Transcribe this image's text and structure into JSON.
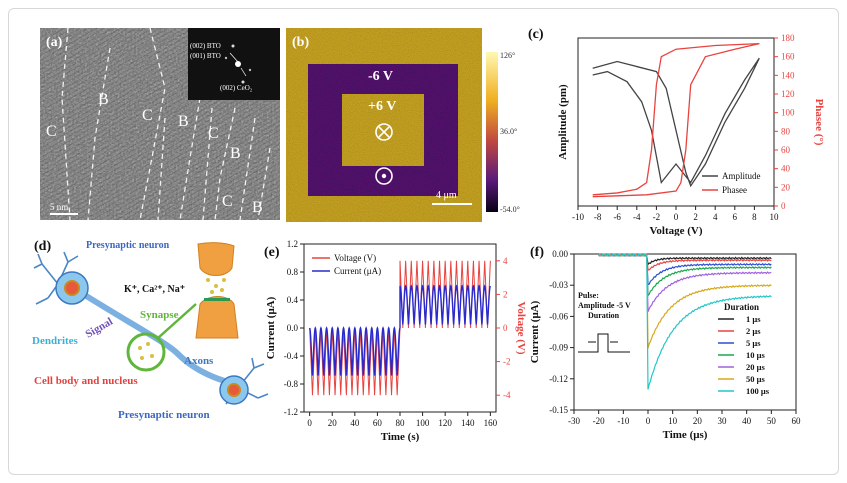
{
  "panels": {
    "a": {
      "label": "(a)",
      "fft_labels": [
        "(002) BTO",
        "(001) BTO",
        "(002) CeO₂"
      ],
      "region_labels": [
        "C",
        "B",
        "C",
        "B",
        "C",
        "B",
        "C",
        "B"
      ],
      "scale_bar": "5 nm"
    },
    "b": {
      "label": "(b)",
      "text_outer": "-6 V",
      "text_inner": "+6 V",
      "colorbar_ticks": [
        "126°",
        "36.0°",
        "-54.0°"
      ],
      "scale_bar": "4 μm"
    },
    "c": {
      "label": "(c)",
      "xlabel": "Voltage (V)",
      "ylabel_left": "Amplitude (pm)",
      "ylabel_right": "Phasee (°)",
      "legend": [
        "Amplitude",
        "Phasee"
      ],
      "colors": {
        "amplitude": "#444444",
        "phase": "#e8433f"
      }
    },
    "d": {
      "label": "(d)",
      "top_neuron": "Presynaptic neuron",
      "bottom_neuron": "Presynaptic neuron",
      "ions": "K⁺, Ca²⁺, Na⁺",
      "synapse": "Synapse",
      "dendrites": "Dendrites",
      "signal": "Signal",
      "axons": "Axons",
      "cell_body": "Cell body and nucleus"
    },
    "e": {
      "label": "(e)",
      "xlabel": "Time (s)",
      "ylabel_left": "Current (μA)",
      "ylabel_right": "Voltage (V)",
      "legend": [
        "Voltage (V)",
        "Current (μA)"
      ],
      "colors": {
        "voltage": "#e8433f",
        "current": "#2a2acc"
      }
    },
    "f": {
      "label": "(f)",
      "xlabel": "Time (μs)",
      "ylabel": "Current (μA)",
      "pulse_text": [
        "Pulse:",
        "Amplitude -5 V",
        "Duration"
      ],
      "legend_title": "Duration",
      "legend": [
        "1 μs",
        "2 μs",
        "5 μs",
        "10 μs",
        "20 μs",
        "50 μs",
        "100 μs"
      ],
      "colors": [
        "#222222",
        "#e8433f",
        "#2a4fd6",
        "#1aa84a",
        "#a060e0",
        "#d8a818",
        "#20c8c8"
      ]
    }
  },
  "chart_data": [
    {
      "type": "line",
      "panel": "c",
      "xlim": [
        -10,
        10
      ],
      "xticks": [
        -10,
        -8,
        -6,
        -4,
        -2,
        0,
        2,
        4,
        6,
        8,
        10
      ],
      "ylim_right": [
        0,
        180
      ],
      "yticks_right": [
        0,
        20,
        40,
        60,
        80,
        100,
        120,
        140,
        160,
        180
      ],
      "series": [
        {
          "name": "Amplitude",
          "axis": "left",
          "x": [
            -8.5,
            -7,
            -5,
            -3.5,
            -2.5,
            -1.5,
            0,
            1.5,
            3,
            5,
            7,
            8.5,
            7,
            5,
            3,
            1.5,
            1,
            0,
            -1,
            -2,
            -4,
            -6,
            -8.5
          ],
          "y": [
            0.78,
            0.8,
            0.74,
            0.62,
            0.45,
            0.14,
            0.25,
            0.14,
            0.3,
            0.55,
            0.75,
            0.88,
            0.7,
            0.5,
            0.25,
            0.12,
            0.2,
            0.45,
            0.7,
            0.8,
            0.83,
            0.86,
            0.82
          ]
        },
        {
          "name": "Phasee",
          "axis": "right",
          "x": [
            -8.5,
            -6,
            -4,
            -3,
            -2.5,
            -2,
            -1.5,
            0,
            4,
            8.5,
            6,
            3,
            1.5,
            1,
            0.5,
            0,
            -3,
            -8.5
          ],
          "y": [
            12,
            14,
            18,
            25,
            60,
            130,
            160,
            168,
            172,
            174,
            168,
            160,
            130,
            60,
            25,
            16,
            12,
            10
          ]
        }
      ]
    },
    {
      "type": "line",
      "panel": "e",
      "xlim": [
        -5,
        165
      ],
      "xticks": [
        0,
        20,
        40,
        60,
        80,
        100,
        120,
        140,
        160
      ],
      "ylim_left": [
        -1.2,
        1.2
      ],
      "yticks_left": [
        -1.2,
        -0.8,
        -0.4,
        0.0,
        0.4,
        0.8,
        1.2
      ],
      "ylim_right": [
        -5,
        5
      ],
      "yticks_right": [
        -4,
        -2,
        0,
        2,
        4
      ],
      "series": [
        {
          "name": "Voltage (V)",
          "axis": "right",
          "period_s": 5,
          "segments": [
            {
              "t": [
                0,
                80
              ],
              "min": -4,
              "max": 0
            },
            {
              "t": [
                80,
                160
              ],
              "min": 0,
              "max": 4
            }
          ]
        },
        {
          "name": "Current (μA)",
          "axis": "left",
          "period_s": 5,
          "segments": [
            {
              "t": [
                0,
                80
              ],
              "min": -0.68,
              "max": 0.0
            },
            {
              "t": [
                80,
                160
              ],
              "min": 0.05,
              "max": 0.6
            }
          ]
        }
      ]
    },
    {
      "type": "line",
      "panel": "f",
      "xlim": [
        -30,
        60
      ],
      "xticks": [
        -30,
        -20,
        -10,
        0,
        10,
        20,
        30,
        40,
        50,
        60
      ],
      "ylim": [
        -0.15,
        0.0
      ],
      "yticks": [
        0.0,
        -0.03,
        -0.06,
        -0.09,
        -0.12,
        -0.15
      ],
      "series": [
        {
          "name": "1 μs",
          "final": -0.004,
          "peak": -0.01
        },
        {
          "name": "2 μs",
          "final": -0.006,
          "peak": -0.016
        },
        {
          "name": "5 μs",
          "final": -0.01,
          "peak": -0.03
        },
        {
          "name": "10 μs",
          "final": -0.013,
          "peak": -0.04
        },
        {
          "name": "20 μs",
          "final": -0.018,
          "peak": -0.055
        },
        {
          "name": "50 μs",
          "final": -0.03,
          "peak": -0.09
        },
        {
          "name": "100 μs",
          "final": -0.04,
          "peak": -0.13
        }
      ]
    }
  ]
}
